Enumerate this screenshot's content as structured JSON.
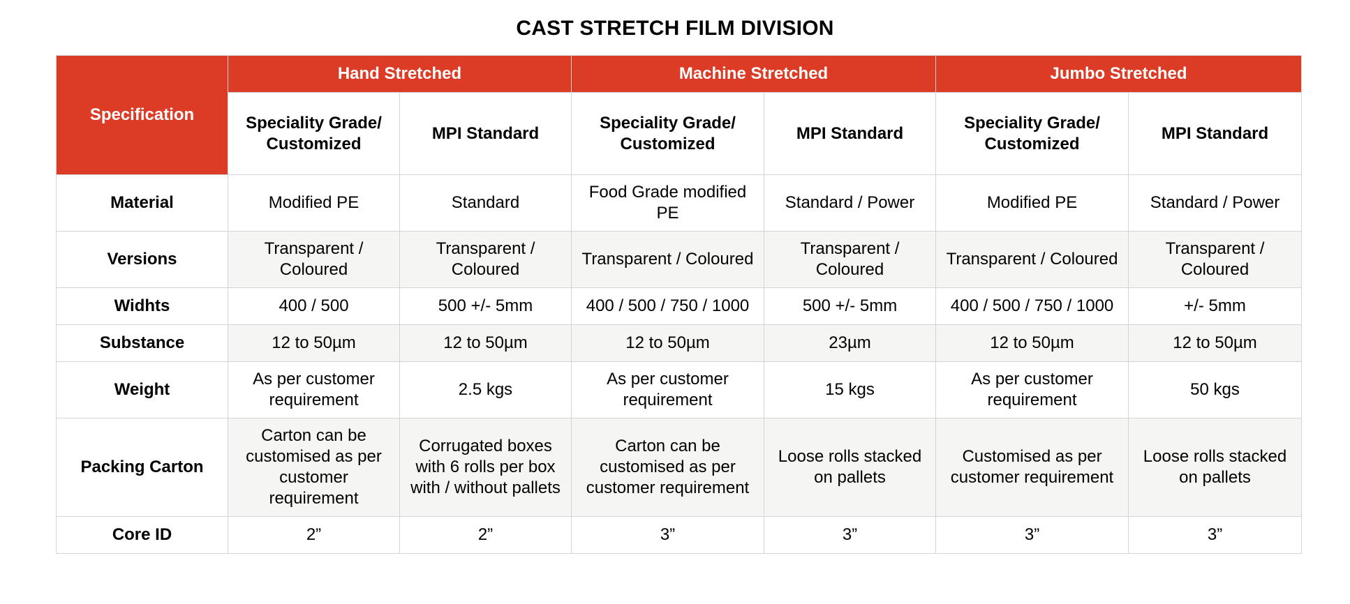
{
  "title": "CAST STRETCH FILM DIVISION",
  "spec_header": "Specification",
  "groups": [
    "Hand Stretched",
    "Machine Stretched",
    "Jumbo Stretched"
  ],
  "sub_headers": [
    "Speciality Grade/ Customized",
    "MPI Standard",
    "Speciality Grade/ Customized",
    "MPI Standard",
    "Speciality Grade/ Customized",
    "MPI Standard"
  ],
  "rows": [
    {
      "label": "Material",
      "cells": [
        "Modified PE",
        "Standard",
        "Food Grade modified PE",
        "Standard / Power",
        "Modified PE",
        "Standard / Power"
      ]
    },
    {
      "label": "Versions",
      "cells": [
        "Transparent / Coloured",
        "Transparent / Coloured",
        "Transparent / Coloured",
        "Transparent / Coloured",
        "Transparent / Coloured",
        "Transparent / Coloured"
      ]
    },
    {
      "label": "Widhts",
      "cells": [
        "400 / 500",
        "500 +/- 5mm",
        "400 / 500 / 750 / 1000",
        "500 +/- 5mm",
        "400 / 500 / 750 / 1000",
        "+/- 5mm"
      ]
    },
    {
      "label": "Substance",
      "cells": [
        "12 to 50µm",
        "12 to 50µm",
        "12 to 50µm",
        "23µm",
        "12 to 50µm",
        "12 to 50µm"
      ]
    },
    {
      "label": "Weight",
      "cells": [
        "As per customer requirement",
        "2.5 kgs",
        "As per customer requirement",
        "15 kgs",
        "As per customer requirement",
        "50 kgs"
      ]
    },
    {
      "label": "Packing Carton",
      "cells": [
        "Carton can be customised as per customer requirement",
        "Corrugated boxes with 6 rolls per box with / without pallets",
        "Carton can be customised as per customer requirement",
        "Loose rolls stacked on pallets",
        "Customised as per customer requirement",
        "Loose rolls stacked on pallets"
      ]
    },
    {
      "label": "Core ID",
      "cells": [
        "2”",
        "2”",
        "3”",
        "3”",
        "3”",
        "3”"
      ]
    }
  ],
  "colors": {
    "header_red": "#dc3b26",
    "shade": "#f5f5f3",
    "border": "#d4d4d4"
  }
}
